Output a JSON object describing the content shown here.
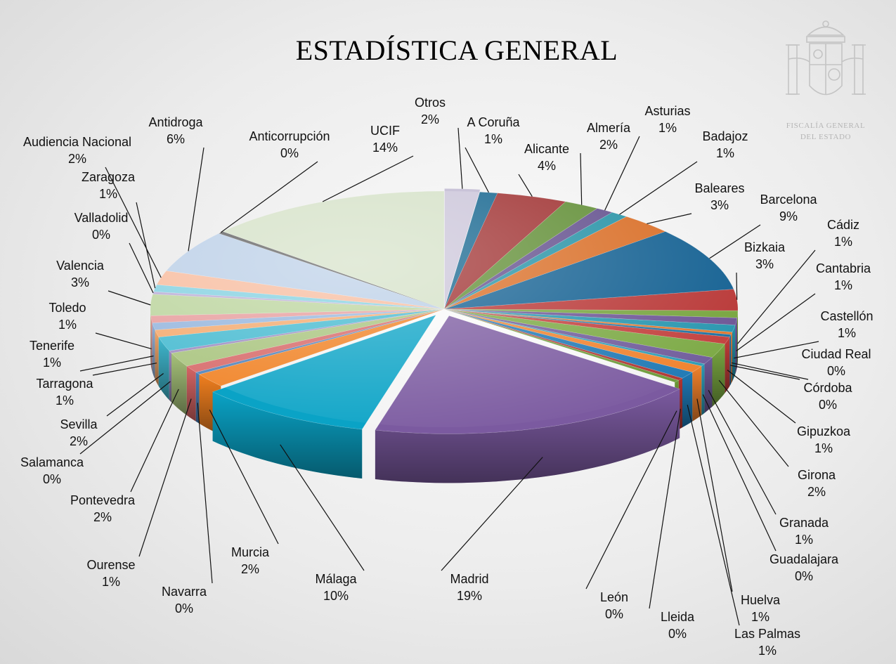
{
  "chart_data": {
    "type": "pie",
    "title": "ESTADÍSTICA GENERAL",
    "slices": [
      {
        "label": "Otros",
        "value": 2,
        "display": "2%",
        "color": "#c9c3d8"
      },
      {
        "label": "A Coruña",
        "value": 1,
        "display": "1%",
        "color": "#0b5f8a"
      },
      {
        "label": "Alicante",
        "value": 4,
        "display": "4%",
        "color": "#9c2a2a"
      },
      {
        "label": "Almería",
        "value": 2,
        "display": "2%",
        "color": "#5b8a2e"
      },
      {
        "label": "Asturias",
        "value": 1,
        "display": "1%",
        "color": "#5e4a8a"
      },
      {
        "label": "Badajoz",
        "value": 1,
        "display": "1%",
        "color": "#1f8fa3"
      },
      {
        "label": "Baleares",
        "value": 3,
        "display": "3%",
        "color": "#d8691f"
      },
      {
        "label": "Barcelona",
        "value": 9,
        "display": "9%",
        "color": "#0d5c8f"
      },
      {
        "label": "Bizkaia",
        "value": 3,
        "display": "3%",
        "color": "#b73332"
      },
      {
        "label": "Cádiz",
        "value": 1,
        "display": "1%",
        "color": "#74a33a"
      },
      {
        "label": "Cantabria",
        "value": 1,
        "display": "1%",
        "color": "#6a5293"
      },
      {
        "label": "Castellón",
        "value": 1,
        "display": "1%",
        "color": "#2494ad"
      },
      {
        "label": "Ciudad Real",
        "value": 0,
        "display": "0%",
        "color": "#e0752a"
      },
      {
        "label": "Córdoba",
        "value": 0,
        "display": "0%",
        "color": "#1a6fa0"
      },
      {
        "label": "Gipuzkoa",
        "value": 1,
        "display": "1%",
        "color": "#c23d3a"
      },
      {
        "label": "Girona",
        "value": 2,
        "display": "2%",
        "color": "#7aa842"
      },
      {
        "label": "Granada",
        "value": 1,
        "display": "1%",
        "color": "#6e5a9a"
      },
      {
        "label": "Guadalajara",
        "value": 0,
        "display": "0%",
        "color": "#2b9bb4"
      },
      {
        "label": "Huelva",
        "value": 1,
        "display": "1%",
        "color": "#f0812c"
      },
      {
        "label": "Las Palmas",
        "value": 1,
        "display": "1%",
        "color": "#1e78b4"
      },
      {
        "label": "Lleida",
        "value": 0,
        "display": "0%",
        "color": "#b03431"
      },
      {
        "label": "León",
        "value": 0,
        "display": "0%",
        "color": "#6b9a37"
      },
      {
        "label": "Madrid",
        "value": 19,
        "display": "19%",
        "color": "#7b5aa0"
      },
      {
        "label": "Málaga",
        "value": 10,
        "display": "10%",
        "color": "#0aa3c6"
      },
      {
        "label": "Murcia",
        "value": 2,
        "display": "2%",
        "color": "#f07f1f"
      },
      {
        "label": "Navarra",
        "value": 0,
        "display": "0%",
        "color": "#4a7fb8"
      },
      {
        "label": "Ourense",
        "value": 1,
        "display": "1%",
        "color": "#d66565"
      },
      {
        "label": "Pontevedra",
        "value": 2,
        "display": "2%",
        "color": "#a6c27a"
      },
      {
        "label": "Salamanca",
        "value": 0,
        "display": "0%",
        "color": "#9a88bf"
      },
      {
        "label": "Sevilla",
        "value": 2,
        "display": "2%",
        "color": "#40b8cf"
      },
      {
        "label": "Tarragona",
        "value": 1,
        "display": "1%",
        "color": "#f3a76a"
      },
      {
        "label": "Tenerife",
        "value": 1,
        "display": "1%",
        "color": "#92b3dc"
      },
      {
        "label": "Toledo",
        "value": 1,
        "display": "1%",
        "color": "#e69a9a"
      },
      {
        "label": "Valencia",
        "value": 3,
        "display": "3%",
        "color": "#b9d39a"
      },
      {
        "label": "Valladolid",
        "value": 0,
        "display": "0%",
        "color": "#b7aad4"
      },
      {
        "label": "Zaragoza",
        "value": 1,
        "display": "1%",
        "color": "#7fcfe0"
      },
      {
        "label": "Audiencia Nacional",
        "value": 2,
        "display": "2%",
        "color": "#f7b99a"
      },
      {
        "label": "Antidroga",
        "value": 6,
        "display": "6%",
        "color": "#b8cde6"
      },
      {
        "label": "Anticorrupción",
        "value": 0,
        "display": "0%",
        "color": "#5a5a5a"
      },
      {
        "label": "UCIF",
        "value": 14,
        "display": "14%",
        "color": "#d3e0c5"
      }
    ]
  },
  "emblem": {
    "caption_line1": "FISCALÍA GENERAL",
    "caption_line2": "DEL ESTADO"
  }
}
